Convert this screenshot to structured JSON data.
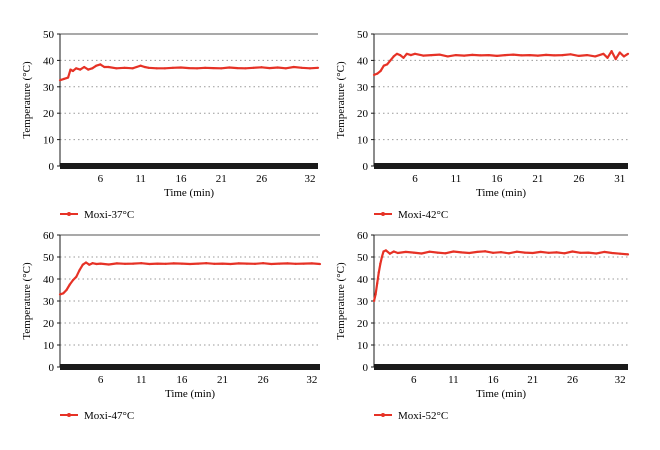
{
  "colors": {
    "series": "#e63226",
    "axis": "#1a1a1a",
    "grid": "#9a9a9a"
  },
  "chart_data": [
    {
      "type": "line",
      "xlabel": "Time (min)",
      "ylabel": "Temperature (°C)",
      "ylim": [
        0,
        50
      ],
      "yticks": [
        0,
        10,
        20,
        30,
        40,
        50
      ],
      "xlim": [
        1,
        33
      ],
      "xticks": [
        6,
        11,
        16,
        21,
        26,
        32
      ],
      "grid": "horizontal dotted",
      "legend": "bottom-left",
      "series": [
        {
          "name": "Moxi-37°C",
          "x": [
            1,
            1.5,
            2,
            2.3,
            2.6,
            3,
            3.5,
            4,
            4.5,
            5,
            5.5,
            6,
            6.5,
            7,
            8,
            9,
            10,
            10.5,
            11,
            11.5,
            12,
            13,
            14,
            15,
            16,
            17,
            18,
            19,
            20,
            21,
            22,
            23,
            24,
            25,
            26,
            27,
            28,
            29,
            30,
            31,
            32,
            33
          ],
          "y": [
            32.5,
            33,
            33.5,
            36.5,
            36,
            37,
            36.5,
            37.5,
            36.5,
            37,
            38,
            38.5,
            37.5,
            37.5,
            37,
            37.2,
            37,
            37.5,
            38,
            37.5,
            37.2,
            37,
            37,
            37.2,
            37.3,
            37.1,
            37,
            37.2,
            37.1,
            37,
            37.3,
            37.1,
            37,
            37.2,
            37.4,
            37.1,
            37.3,
            37,
            37.5,
            37.2,
            37,
            37.2
          ]
        }
      ]
    },
    {
      "type": "line",
      "xlabel": "Time (min)",
      "ylabel": "Temperature (°C)",
      "ylim": [
        0,
        50
      ],
      "yticks": [
        0,
        10,
        20,
        30,
        40,
        50
      ],
      "xlim": [
        1,
        32
      ],
      "xticks": [
        6,
        11,
        16,
        21,
        26,
        31
      ],
      "grid": "horizontal dotted",
      "legend": "bottom-left",
      "series": [
        {
          "name": "Moxi-42°C",
          "x": [
            1,
            1.4,
            1.8,
            2.2,
            2.6,
            3,
            3.4,
            3.8,
            4.2,
            4.6,
            5,
            5.5,
            6,
            7,
            8,
            9,
            10,
            11,
            12,
            13,
            14,
            15,
            16,
            17,
            18,
            19,
            20,
            21,
            22,
            23,
            24,
            25,
            26,
            27,
            28,
            29,
            29.5,
            30,
            30.5,
            31,
            31.5,
            32
          ],
          "y": [
            34.5,
            35,
            36,
            38,
            38.5,
            40,
            41.5,
            42.5,
            42,
            41,
            42.5,
            42,
            42.5,
            41.8,
            42,
            42.2,
            41.5,
            42,
            41.8,
            42.1,
            41.9,
            42,
            41.7,
            42,
            42.2,
            41.9,
            42,
            41.8,
            42.1,
            41.9,
            42,
            42.3,
            41.7,
            42,
            41.5,
            42.5,
            41,
            43.5,
            40.5,
            43,
            41.5,
            42.5
          ]
        }
      ]
    },
    {
      "type": "line",
      "xlabel": "Time (min)",
      "ylabel": "Temperature (°C)",
      "ylim": [
        0,
        60
      ],
      "yticks": [
        0,
        10,
        20,
        30,
        40,
        50,
        60
      ],
      "xlim": [
        1,
        33
      ],
      "xticks": [
        6,
        11,
        16,
        21,
        26,
        32
      ],
      "grid": "horizontal dotted",
      "legend": "bottom-left",
      "series": [
        {
          "name": "Moxi-47°C",
          "x": [
            1,
            1.4,
            1.8,
            2.2,
            2.6,
            3,
            3.4,
            3.8,
            4.2,
            4.6,
            5,
            5.5,
            6,
            7,
            8,
            9,
            10,
            11,
            12,
            13,
            14,
            15,
            16,
            17,
            18,
            19,
            20,
            21,
            22,
            23,
            24,
            25,
            26,
            27,
            28,
            29,
            30,
            31,
            32,
            33
          ],
          "y": [
            33,
            33.5,
            35,
            37.5,
            39.5,
            41,
            44,
            46.5,
            47.5,
            46.5,
            47.2,
            46.8,
            47,
            46.6,
            47.1,
            46.9,
            47,
            47.2,
            46.8,
            47,
            46.9,
            47.1,
            47,
            46.8,
            47,
            47.2,
            46.9,
            47,
            46.8,
            47.1,
            47,
            46.9,
            47.2,
            46.8,
            47,
            47.1,
            46.9,
            47,
            47.1,
            46.8
          ]
        }
      ]
    },
    {
      "type": "line",
      "xlabel": "Time (min)",
      "ylabel": "Temperature (°C)",
      "ylim": [
        0,
        60
      ],
      "yticks": [
        0,
        10,
        20,
        30,
        40,
        50,
        60
      ],
      "xlim": [
        1,
        33
      ],
      "xticks": [
        6,
        11,
        16,
        21,
        26,
        32
      ],
      "grid": "horizontal dotted",
      "legend": "bottom-left",
      "series": [
        {
          "name": "Moxi-52°C",
          "x": [
            1,
            1.2,
            1.4,
            1.6,
            1.8,
            2,
            2.2,
            2.5,
            3,
            3.5,
            4,
            5,
            6,
            7,
            8,
            9,
            10,
            11,
            12,
            13,
            14,
            15,
            16,
            17,
            18,
            19,
            20,
            21,
            22,
            23,
            24,
            25,
            26,
            27,
            28,
            29,
            30,
            31,
            32,
            33
          ],
          "y": [
            30,
            33,
            38,
            43,
            47,
            50,
            52.5,
            53,
            51.5,
            52.5,
            51.8,
            52.3,
            52,
            51.6,
            52.4,
            52,
            51.7,
            52.5,
            52.1,
            51.8,
            52.3,
            52.6,
            51.9,
            52.2,
            51.7,
            52.4,
            52,
            51.8,
            52.3,
            51.9,
            52.1,
            51.7,
            52.5,
            51.9,
            52,
            51.6,
            52.3,
            51.8,
            51.5,
            51.2
          ]
        }
      ]
    }
  ]
}
